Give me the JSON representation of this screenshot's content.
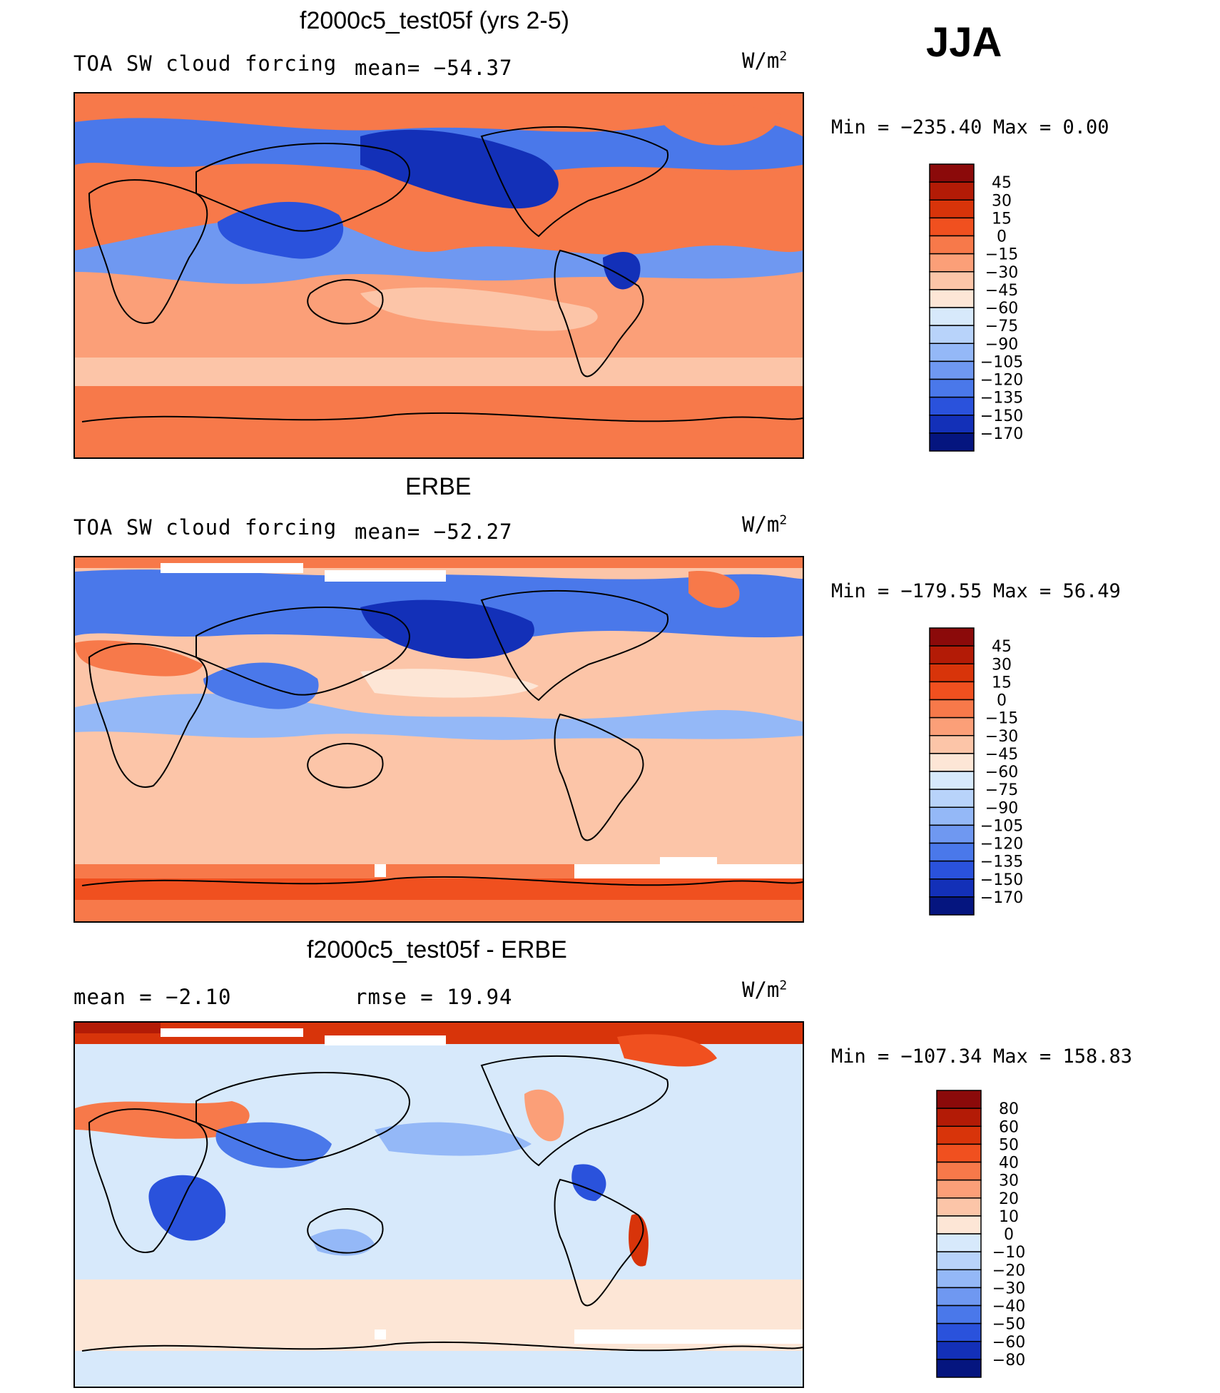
{
  "season": "JJA",
  "units_prefix": "W/m",
  "units_sup": "2",
  "chart_data": [
    {
      "type": "heatmap",
      "title": "f2000c5_test05f (yrs 2-5)",
      "variable": "TOA SW cloud forcing",
      "stat_text": "mean= −54.37",
      "stat_value": -54.37,
      "units": "W/m2",
      "min_text": "Min  =  −235.40",
      "max_text": "Max  =    0.00",
      "min": -235.4,
      "max": 0.0,
      "colorbar_labels": [
        "45",
        "30",
        "15",
        "0",
        "−15",
        "−30",
        "−45",
        "−60",
        "−75",
        "−90",
        "−105",
        "−120",
        "−135",
        "−150",
        "−170"
      ],
      "colorbar_levels": [
        45,
        30,
        15,
        0,
        -15,
        -30,
        -45,
        -60,
        -75,
        -90,
        -105,
        -120,
        -135,
        -150,
        -170
      ],
      "colorbar_colors": [
        "#8b0a0a",
        "#b31b06",
        "#d8340a",
        "#f0501f",
        "#f7794a",
        "#fb9f78",
        "#fcc5a8",
        "#fde6d6",
        "#d7e9fb",
        "#b8d3fa",
        "#94b8f7",
        "#6f98f1",
        "#4a78ea",
        "#2a52dc",
        "#1330b8",
        "#05157f"
      ]
    },
    {
      "type": "heatmap",
      "title": "ERBE",
      "variable": "TOA SW cloud forcing",
      "stat_text": "mean= −52.27",
      "stat_value": -52.27,
      "units": "W/m2",
      "min_text": "Min  =  −179.55",
      "max_text": "Max  =   56.49",
      "min": -179.55,
      "max": 56.49,
      "colorbar_labels": [
        "45",
        "30",
        "15",
        "0",
        "−15",
        "−30",
        "−45",
        "−60",
        "−75",
        "−90",
        "−105",
        "−120",
        "−135",
        "−150",
        "−170"
      ],
      "colorbar_levels": [
        45,
        30,
        15,
        0,
        -15,
        -30,
        -45,
        -60,
        -75,
        -90,
        -105,
        -120,
        -135,
        -150,
        -170
      ],
      "colorbar_colors": [
        "#8b0a0a",
        "#b31b06",
        "#d8340a",
        "#f0501f",
        "#f7794a",
        "#fb9f78",
        "#fcc5a8",
        "#fde6d6",
        "#d7e9fb",
        "#b8d3fa",
        "#94b8f7",
        "#6f98f1",
        "#4a78ea",
        "#2a52dc",
        "#1330b8",
        "#05157f"
      ]
    },
    {
      "type": "heatmap",
      "title": "f2000c5_test05f - ERBE",
      "mean_text": "mean  =    −2.10",
      "mean_value": -2.1,
      "rmse_text": "rmse  =   19.94",
      "rmse_value": 19.94,
      "units": "W/m2",
      "min_text": "Min  =  −107.34",
      "max_text": "Max  =  158.83",
      "min": -107.34,
      "max": 158.83,
      "colorbar_labels": [
        "80",
        "60",
        "50",
        "40",
        "30",
        "20",
        "10",
        "0",
        "−10",
        "−20",
        "−30",
        "−40",
        "−50",
        "−60",
        "−80"
      ],
      "colorbar_levels": [
        80,
        60,
        50,
        40,
        30,
        20,
        10,
        0,
        -10,
        -20,
        -30,
        -40,
        -50,
        -60,
        -80
      ],
      "colorbar_colors": [
        "#8b0a0a",
        "#b31b06",
        "#d8340a",
        "#f0501f",
        "#f7794a",
        "#fb9f78",
        "#fcc5a8",
        "#fde6d6",
        "#d7e9fb",
        "#b8d3fa",
        "#94b8f7",
        "#6f98f1",
        "#4a78ea",
        "#2a52dc",
        "#1330b8",
        "#05157f"
      ]
    }
  ]
}
